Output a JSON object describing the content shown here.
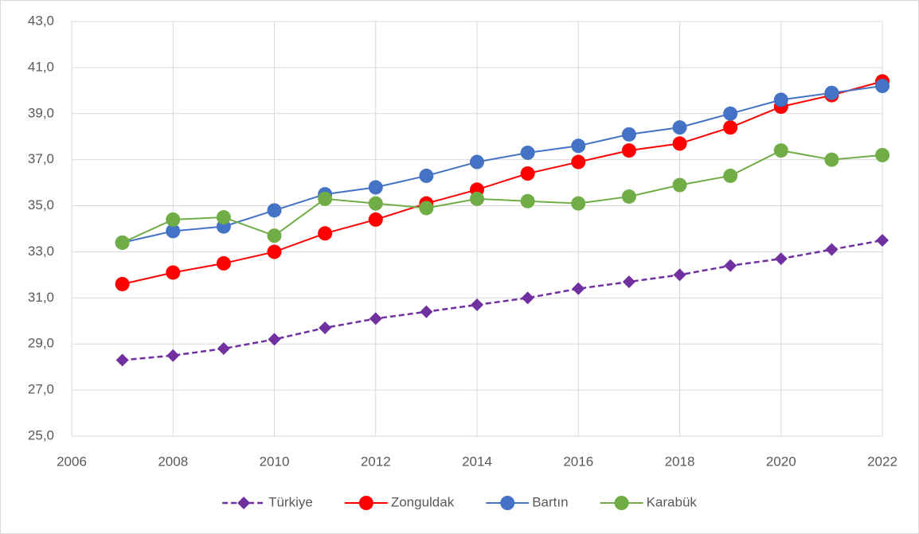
{
  "chart_data": {
    "type": "line",
    "x": [
      2007,
      2008,
      2009,
      2010,
      2011,
      2012,
      2013,
      2014,
      2015,
      2016,
      2017,
      2018,
      2019,
      2020,
      2021,
      2022
    ],
    "series": [
      {
        "name": "Türkiye",
        "color": "#7030a0",
        "marker": "diamond",
        "dash": true,
        "values": [
          28.3,
          28.5,
          28.8,
          29.2,
          29.7,
          30.1,
          30.4,
          30.7,
          31.0,
          31.4,
          31.7,
          32.0,
          32.4,
          32.7,
          33.1,
          33.5
        ]
      },
      {
        "name": "Zonguldak",
        "color": "#ff0000",
        "marker": "circle",
        "dash": false,
        "values": [
          31.6,
          32.1,
          32.5,
          33.0,
          33.8,
          34.4,
          35.1,
          35.7,
          36.4,
          36.9,
          37.4,
          37.7,
          38.4,
          39.3,
          39.8,
          40.4
        ]
      },
      {
        "name": "Bartın",
        "color": "#4472c4",
        "marker": "circle",
        "dash": false,
        "values": [
          33.4,
          33.9,
          34.1,
          34.8,
          35.5,
          35.8,
          36.3,
          36.9,
          37.3,
          37.6,
          38.1,
          38.4,
          39.0,
          39.6,
          39.9,
          40.2
        ]
      },
      {
        "name": "Karabük",
        "color": "#70ad47",
        "marker": "circle",
        "dash": false,
        "values": [
          33.4,
          34.4,
          34.5,
          33.7,
          35.3,
          35.1,
          34.9,
          35.3,
          35.2,
          35.1,
          35.4,
          35.9,
          36.3,
          37.4,
          37.0,
          37.2
        ]
      }
    ],
    "xlim": [
      2006,
      2022
    ],
    "xticks": [
      2006,
      2008,
      2010,
      2012,
      2014,
      2016,
      2018,
      2020,
      2022
    ],
    "ylim": [
      25,
      43
    ],
    "yticks": [
      {
        "value": 25,
        "label": "25,0"
      },
      {
        "value": 27,
        "label": "27,0"
      },
      {
        "value": 29,
        "label": "29,0"
      },
      {
        "value": 31,
        "label": "31,0"
      },
      {
        "value": 33,
        "label": "33,0"
      },
      {
        "value": 35,
        "label": "35,0"
      },
      {
        "value": 37,
        "label": "37,0"
      },
      {
        "value": 39,
        "label": "39,0"
      },
      {
        "value": 41,
        "label": "41,0"
      },
      {
        "value": 43,
        "label": "43,0"
      }
    ],
    "grid": true,
    "legend": "bottom"
  }
}
